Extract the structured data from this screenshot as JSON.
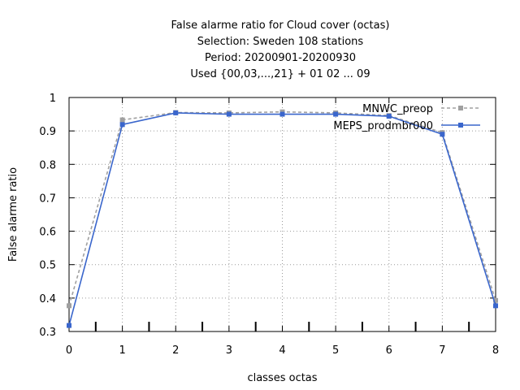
{
  "chart_data": {
    "type": "line",
    "title_lines": [
      "False alarme ratio  for Cloud cover (octas)",
      "Selection: Sweden    108 stations",
      "Period: 20200901-20200930",
      "Used {00,03,...,21} + 01 02 ... 09"
    ],
    "xlabel": "classes octas",
    "ylabel": "False alarme ratio",
    "xlim": [
      0,
      8
    ],
    "ylim": [
      0.3,
      1.0
    ],
    "x_ticks": [
      "0",
      "1",
      "2",
      "3",
      "4",
      "5",
      "6",
      "7",
      "8"
    ],
    "y_ticks": [
      "0.3",
      "0.4",
      "0.5",
      "0.6",
      "0.7",
      "0.8",
      "0.9",
      "1"
    ],
    "grid": true,
    "legend_position": "top-right",
    "series": [
      {
        "name": "MNWC_preop",
        "color": "#a0a0a0",
        "style": "dashed",
        "x": [
          0,
          1,
          2,
          3,
          4,
          5,
          6,
          7,
          8
        ],
        "y": [
          0.377,
          0.933,
          0.955,
          0.954,
          0.957,
          0.954,
          0.946,
          0.895,
          0.393
        ]
      },
      {
        "name": "MEPS_prodmbr000",
        "color": "#3a66cc",
        "style": "solid",
        "x": [
          0,
          1,
          2,
          3,
          4,
          5,
          6,
          7,
          8
        ],
        "y": [
          0.318,
          0.919,
          0.954,
          0.95,
          0.95,
          0.95,
          0.944,
          0.89,
          0.377
        ]
      }
    ]
  }
}
